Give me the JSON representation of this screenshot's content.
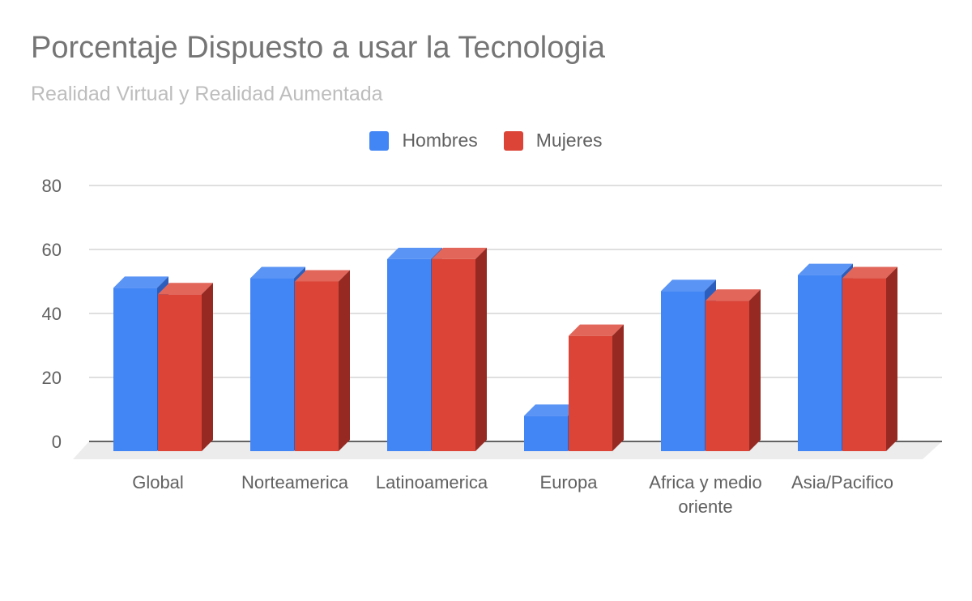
{
  "chart_data": {
    "type": "bar",
    "style": "3d-clustered",
    "title": "Porcentaje Dispuesto a usar la Tecnologia",
    "subtitle": "Realidad Virtual y Realidad Aumentada",
    "categories": [
      [
        "Global"
      ],
      [
        "Norteamerica"
      ],
      [
        "Latinoamerica"
      ],
      [
        "Europa"
      ],
      [
        "Africa y medio",
        "oriente"
      ],
      [
        "Asia/Pacifico"
      ]
    ],
    "series": [
      {
        "name": "Hombres",
        "color": "#4285f4",
        "top_color": "#5a94f5",
        "side_color": "#2c5fbd",
        "values": [
          48,
          51,
          57,
          8,
          47,
          52
        ]
      },
      {
        "name": "Mujeres",
        "color": "#db4437",
        "top_color": "#e2665a",
        "side_color": "#962a22",
        "values": [
          46,
          50,
          57,
          33,
          44,
          51
        ]
      }
    ],
    "ylim": [
      0,
      80
    ],
    "yticks": [
      0,
      20,
      40,
      60,
      80
    ],
    "grid": true,
    "legend_position": "top"
  }
}
